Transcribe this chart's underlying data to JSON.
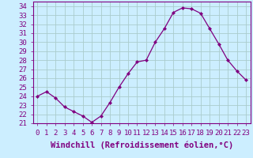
{
  "hours": [
    0,
    1,
    2,
    3,
    4,
    5,
    6,
    7,
    8,
    9,
    10,
    11,
    12,
    13,
    14,
    15,
    16,
    17,
    18,
    19,
    20,
    21,
    22,
    23
  ],
  "values": [
    24.0,
    24.5,
    23.8,
    22.8,
    22.3,
    21.8,
    21.1,
    21.8,
    23.3,
    25.0,
    26.5,
    27.8,
    28.0,
    30.0,
    31.5,
    33.3,
    33.8,
    33.7,
    33.2,
    31.5,
    29.8,
    28.0,
    26.8,
    25.8
  ],
  "line_color": "#800080",
  "marker": "D",
  "marker_size": 2.0,
  "bg_color": "#cceeff",
  "grid_color": "#aacccc",
  "xlabel": "Windchill (Refroidissement éolien,°C)",
  "ylim": [
    21,
    34.5
  ],
  "yticks": [
    21,
    22,
    23,
    24,
    25,
    26,
    27,
    28,
    29,
    30,
    31,
    32,
    33,
    34
  ],
  "xtick_labels": [
    "0",
    "1",
    "2",
    "3",
    "4",
    "5",
    "6",
    "7",
    "8",
    "9",
    "10",
    "11",
    "12",
    "13",
    "14",
    "15",
    "16",
    "17",
    "18",
    "19",
    "20",
    "21",
    "22",
    "23"
  ],
  "tick_fontsize": 6.5,
  "xlabel_fontsize": 7.5,
  "linewidth": 0.9
}
